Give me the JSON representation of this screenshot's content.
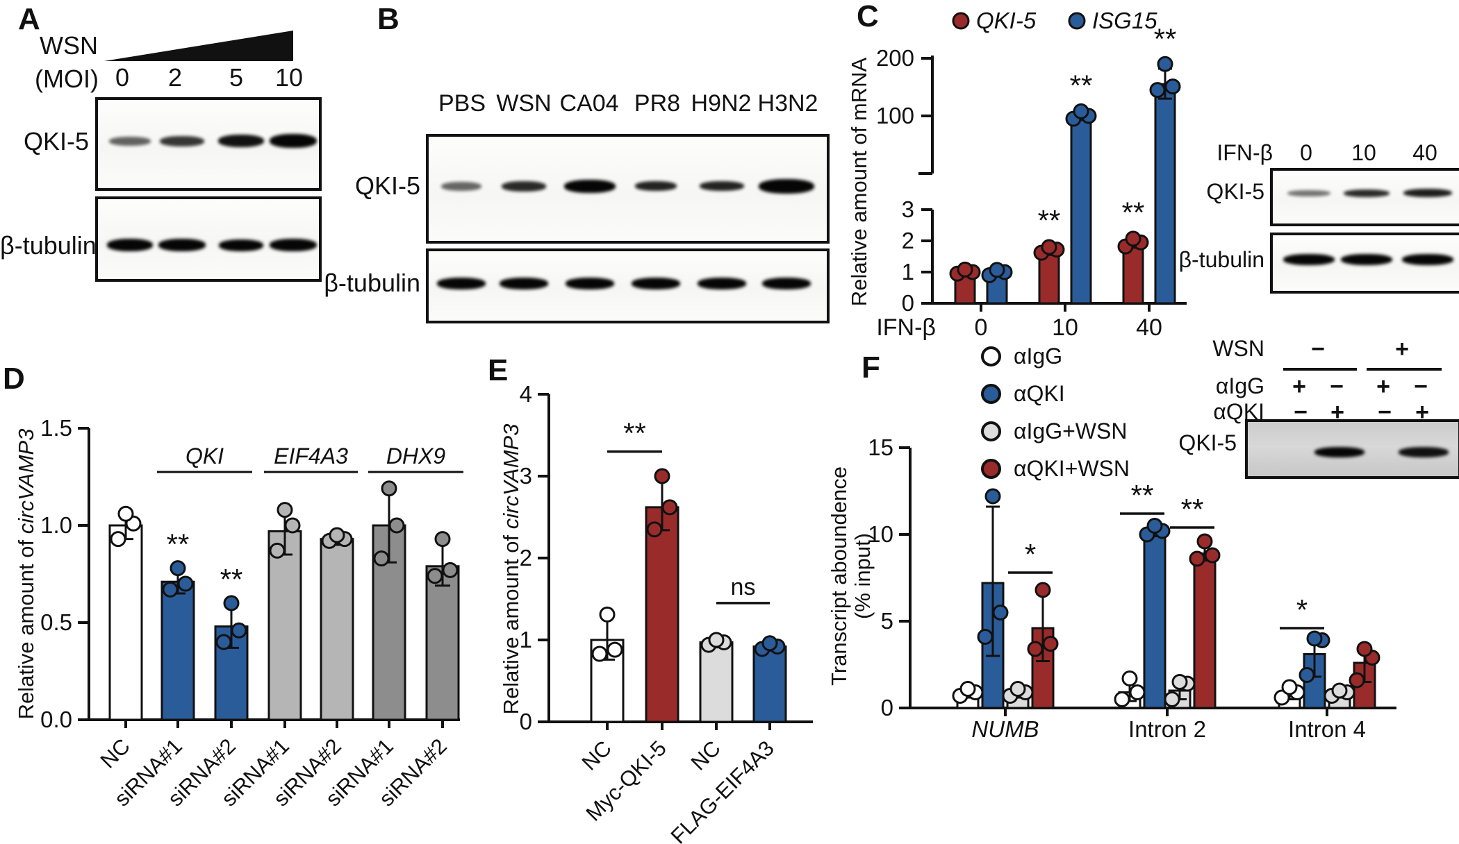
{
  "colors": {
    "dark_red": "#9a2b2b",
    "blue": "#2a5c9a",
    "light_gray": "#b5b5b5",
    "dark_gray": "#8d8d8d",
    "pale_gray": "#dcdcdc",
    "white": "#ffffff"
  },
  "panels": {
    "a": {
      "label": "A",
      "treatment": "WSN",
      "moi": "(MOI)",
      "doses": [
        "0",
        "2",
        "5",
        "10"
      ],
      "row1": "QKI-5",
      "row2": "β-tubulin",
      "bands_row1": [
        0.62,
        0.8,
        0.95,
        1
      ],
      "bands_row2": [
        1,
        1,
        1,
        1
      ]
    },
    "b": {
      "label": "B",
      "lanes": [
        "PBS",
        "WSN",
        "CA04",
        "PR8",
        "H9N2",
        "H3N2"
      ],
      "row1": "QKI-5",
      "row2": "β-tubulin",
      "bands_row1": [
        0.6,
        0.85,
        1,
        0.88,
        0.88,
        1
      ],
      "bands_row2": [
        1,
        1,
        1,
        1,
        1,
        1
      ]
    },
    "c": {
      "label": "C",
      "blot": {
        "treatment": "IFN-β",
        "doses": [
          "0",
          "10",
          "40"
        ],
        "row1": "QKI-5",
        "row2": "β-tubulin",
        "bands_row1": [
          0.55,
          0.85,
          0.9
        ],
        "bands_row2": [
          1,
          1,
          1
        ]
      }
    },
    "d": {
      "label": "D"
    },
    "e": {
      "label": "E"
    },
    "f": {
      "label": "F",
      "legend": [
        {
          "label": "αIgG",
          "color": "#ffffff"
        },
        {
          "label": "αQKI",
          "color": "#2a5c9a"
        },
        {
          "label": "αIgG+WSN",
          "color": "#dcdcdc"
        },
        {
          "label": "αQKI+WSN",
          "color": "#9a2b2b"
        }
      ],
      "blot": {
        "rows": [
          {
            "label": "WSN",
            "values": [
              "−",
              "+"
            ]
          },
          {
            "label": "αIgG",
            "values": [
              "+",
              "−",
              "+",
              "−"
            ]
          },
          {
            "label": "αQKI",
            "values": [
              "−",
              "+",
              "−",
              "+"
            ]
          }
        ],
        "row_band": "QKI-5",
        "bands": [
          1,
          0.95
        ]
      }
    }
  },
  "chart_data": [
    {
      "id": "c",
      "type": "grouped-bar-broken-axis",
      "title": "",
      "ylabel": "Relative amount of mRNA",
      "xlabel": "IFN-β",
      "categories": [
        "0",
        "10",
        "40"
      ],
      "lower_ticks": [
        "0",
        "1",
        "2",
        "3"
      ],
      "upper_ticks": [
        "100",
        "200"
      ],
      "lower_range": [
        0,
        3
      ],
      "upper_range": [
        100,
        200
      ],
      "legend_position": "top",
      "series": [
        {
          "name": "QKI-5",
          "color": "#9a2b2b",
          "values": [
            1.0,
            1.7,
            1.95
          ],
          "err": [
            [
              0.9,
              1.1
            ],
            [
              1.55,
              1.85
            ],
            [
              1.78,
              2.1
            ]
          ],
          "dots": [
            [
              0.95,
              1.0,
              1.08
            ],
            [
              1.62,
              1.72,
              1.8
            ],
            [
              1.82,
              1.95,
              2.07
            ]
          ],
          "sig": [
            "",
            "**",
            "**"
          ]
        },
        {
          "name": "ISG15",
          "color": "#2a5c9a",
          "values": [
            1.0,
            101,
            155
          ],
          "err": [
            [
              0.88,
              1.1
            ],
            [
              93,
              109
            ],
            [
              130,
              182
            ]
          ],
          "dots": [
            [
              0.9,
              1.0,
              1.07
            ],
            [
              95,
              100,
              108
            ],
            [
              145,
              151,
              190
            ]
          ],
          "sig": [
            "",
            "**",
            "**"
          ]
        }
      ]
    },
    {
      "id": "d",
      "type": "bar",
      "ylabel_prefix": "Relative amount of ",
      "ylabel_italic": "circVAMP3",
      "yticks": [
        "0.0",
        "0.5",
        "1.0",
        "1.5"
      ],
      "ytick_values": [
        0,
        0.5,
        1,
        1.5
      ],
      "ylim": [
        0,
        1.5
      ],
      "categories": [
        "NC",
        "siRNA#1",
        "siRNA#2",
        "siRNA#1",
        "siRNA#2",
        "siRNA#1",
        "siRNA#2"
      ],
      "values": [
        1.0,
        0.71,
        0.48,
        0.97,
        0.93,
        1.0,
        0.79
      ],
      "colors": [
        "#ffffff",
        "#2a5c9a",
        "#2a5c9a",
        "#b5b5b5",
        "#b5b5b5",
        "#8d8d8d",
        "#8d8d8d"
      ],
      "err": [
        [
          0.93,
          1.07
        ],
        [
          0.65,
          0.78
        ],
        [
          0.37,
          0.6
        ],
        [
          0.85,
          1.08
        ],
        [
          0.9,
          0.96
        ],
        [
          0.81,
          1.19
        ],
        [
          0.69,
          0.93
        ]
      ],
      "dots": [
        [
          0.93,
          1.01,
          1.06
        ],
        [
          0.67,
          0.7,
          0.78
        ],
        [
          0.4,
          0.46,
          0.6
        ],
        [
          0.87,
          1.0,
          1.08
        ],
        [
          0.92,
          0.93,
          0.95
        ],
        [
          0.83,
          1.0,
          1.19
        ],
        [
          0.74,
          0.77,
          0.93
        ]
      ],
      "sig": [
        "",
        "**",
        "**",
        "",
        "",
        "",
        ""
      ],
      "groups": [
        {
          "label": "QKI",
          "from": 1,
          "to": 2
        },
        {
          "label": "EIF4A3",
          "from": 3,
          "to": 4
        },
        {
          "label": "DHX9",
          "from": 5,
          "to": 6
        }
      ]
    },
    {
      "id": "e",
      "type": "bar",
      "ylabel_prefix": "Relative amount of ",
      "ylabel_italic": "circVAMP3",
      "yticks": [
        "0",
        "1",
        "2",
        "3",
        "4"
      ],
      "ytick_values": [
        0,
        1,
        2,
        3,
        4
      ],
      "ylim": [
        0,
        4
      ],
      "categories": [
        "NC",
        "Myc-QKI-5",
        "NC",
        "FLAG-EIF4A3"
      ],
      "values": [
        1.0,
        2.62,
        0.97,
        0.92
      ],
      "colors": [
        "#ffffff",
        "#9a2b2b",
        "#dcdcdc",
        "#2a5c9a"
      ],
      "err": [
        [
          0.76,
          1.31
        ],
        [
          2.34,
          3.0
        ],
        [
          0.91,
          1.02
        ],
        [
          0.87,
          0.97
        ]
      ],
      "dots": [
        [
          0.83,
          0.88,
          1.31
        ],
        [
          2.35,
          2.62,
          3.0
        ],
        [
          0.94,
          0.97,
          1.0
        ],
        [
          0.89,
          0.92,
          0.96
        ]
      ],
      "sig": [
        "",
        "",
        "",
        ""
      ],
      "brackets": [
        {
          "from": 0,
          "to": 1,
          "label": "**",
          "y": 3.3
        },
        {
          "from": 2,
          "to": 3,
          "label": "ns",
          "y": 1.45
        }
      ]
    },
    {
      "id": "f",
      "type": "grouped-bar",
      "ylabel_line1": "Transcript aboundence",
      "ylabel_line2": "(% input)",
      "yticks": [
        "0",
        "5",
        "10",
        "15"
      ],
      "ytick_values": [
        0,
        5,
        10,
        15
      ],
      "ylim": [
        0,
        15
      ],
      "categories": [
        "NUMB",
        "Intron 2",
        "Intron 4"
      ],
      "categories_italic": [
        true,
        false,
        false
      ],
      "series": [
        {
          "name": "αIgG",
          "color": "#ffffff",
          "values": [
            0.85,
            0.9,
            0.9
          ],
          "err": [
            [
              0.6,
              1.1
            ],
            [
              0.4,
              1.6
            ],
            [
              0.5,
              1.25
            ]
          ],
          "dots": [
            [
              0.7,
              0.9,
              1.1
            ],
            [
              0.5,
              0.9,
              1.7
            ],
            [
              0.6,
              0.9,
              1.2
            ]
          ]
        },
        {
          "name": "αQKI",
          "color": "#2a5c9a",
          "values": [
            7.2,
            10.2,
            3.1
          ],
          "err": [
            [
              3.0,
              11.6
            ],
            [
              9.9,
              10.5
            ],
            [
              1.8,
              4.2
            ]
          ],
          "dots": [
            [
              4.1,
              5.5,
              12.2
            ],
            [
              10.0,
              10.2,
              10.5
            ],
            [
              1.9,
              3.9,
              4.0
            ]
          ]
        },
        {
          "name": "αIgG+WSN",
          "color": "#dcdcdc",
          "values": [
            0.85,
            1.0,
            0.85
          ],
          "err": [
            [
              0.6,
              1.1
            ],
            [
              0.5,
              1.6
            ],
            [
              0.6,
              1.05
            ]
          ],
          "dots": [
            [
              0.7,
              0.9,
              1.1
            ],
            [
              0.5,
              1.4,
              1.5
            ],
            [
              0.7,
              0.9,
              1.0
            ]
          ]
        },
        {
          "name": "αQKI+WSN",
          "color": "#9a2b2b",
          "values": [
            4.6,
            8.9,
            2.6
          ],
          "err": [
            [
              2.7,
              6.6
            ],
            [
              8.5,
              9.5
            ],
            [
              1.5,
              3.3
            ]
          ],
          "dots": [
            [
              3.4,
              3.7,
              6.8
            ],
            [
              8.6,
              8.8,
              9.6
            ],
            [
              1.6,
              2.9,
              3.4
            ]
          ]
        }
      ],
      "brackets": [
        {
          "group": 0,
          "s1": 2,
          "s2": 3,
          "label": "*",
          "y": 7.8
        },
        {
          "group": 1,
          "s1": 0,
          "s2": 1,
          "label": "**",
          "y": 11.2
        },
        {
          "group": 1,
          "s1": 2,
          "s2": 3,
          "label": "**",
          "y": 10.4
        },
        {
          "group": 2,
          "s1": 0,
          "s2": 1,
          "label": "*",
          "y": 4.6
        }
      ]
    }
  ]
}
